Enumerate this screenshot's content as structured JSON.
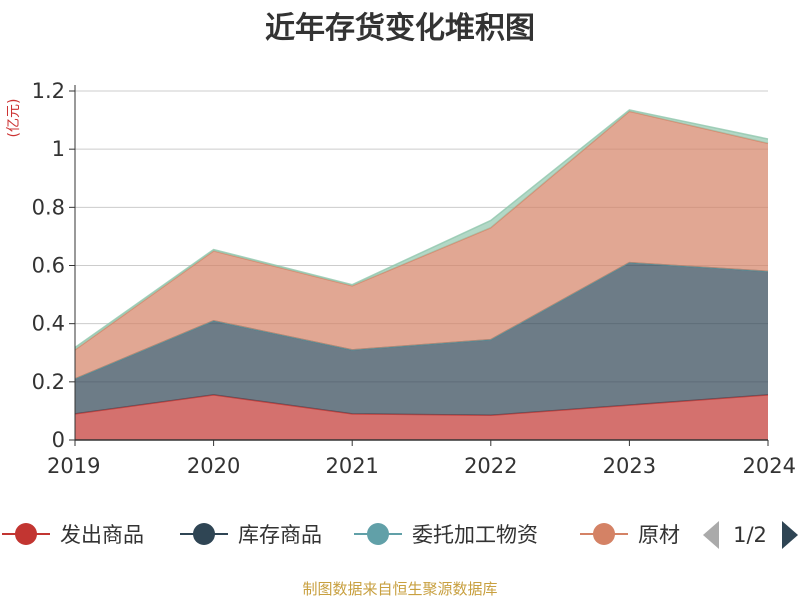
{
  "chart_data": {
    "type": "area",
    "stacked": true,
    "title": "近年存货变化堆积图",
    "unit_label": "(亿元)",
    "x": [
      "2019",
      "2020",
      "2021",
      "2022",
      "2023",
      "2024"
    ],
    "ylim": [
      0,
      1.2
    ],
    "yticks": [
      "0",
      "0.2",
      "0.4",
      "0.6",
      "0.8",
      "1",
      "1.2"
    ],
    "grid": true,
    "series": [
      {
        "name": "发出商品",
        "color": "#c23531",
        "values": [
          0.09,
          0.155,
          0.09,
          0.085,
          0.12,
          0.155
        ]
      },
      {
        "name": "库存商品",
        "color": "#2f4554",
        "values": [
          0.12,
          0.255,
          0.22,
          0.26,
          0.49,
          0.425
        ]
      },
      {
        "name": "委托加工物资",
        "color": "#61a0a8",
        "values": [
          0.0,
          0.0,
          0.0,
          0.0,
          0.0,
          0.0
        ]
      },
      {
        "name": "原材料",
        "color": "#d48265",
        "values": [
          0.1,
          0.24,
          0.22,
          0.385,
          0.52,
          0.44
        ]
      },
      {
        "name": "",
        "color": "#91c7ae",
        "values": [
          0.008,
          0.005,
          0.004,
          0.025,
          0.005,
          0.015
        ]
      }
    ],
    "legend": {
      "visible": [
        "发出商品",
        "库存商品",
        "委托加工物资",
        "原材"
      ],
      "page": "1/2",
      "placement": "bottom"
    }
  },
  "source": "制图数据来自恒生聚源数据库"
}
